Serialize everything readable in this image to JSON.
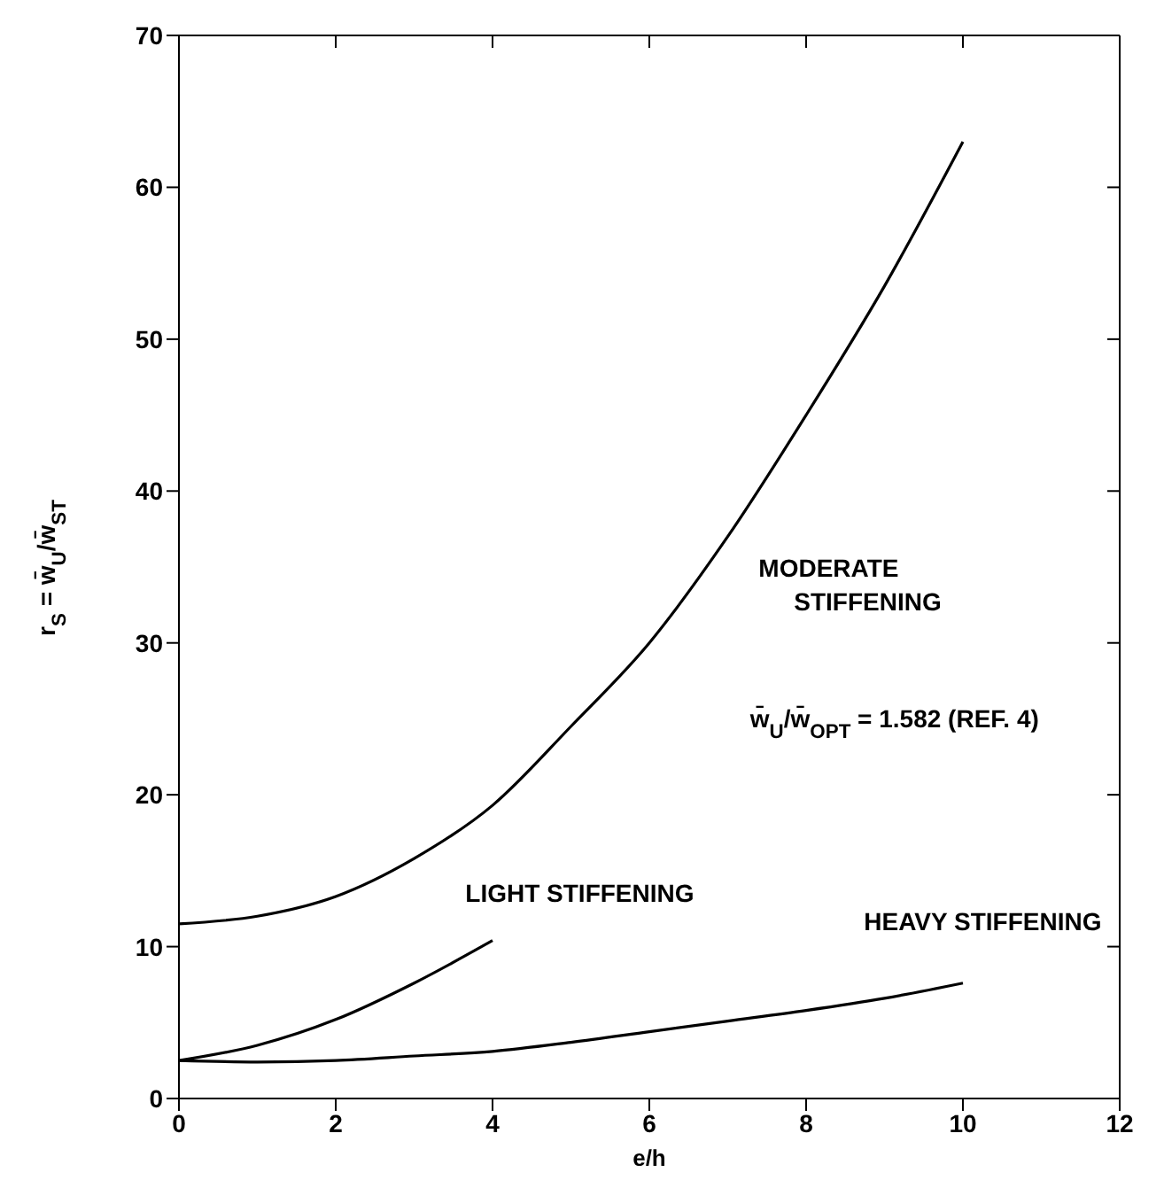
{
  "chart_data": {
    "type": "line",
    "xlabel": "e/h",
    "ylabel": "r$_{S}$ = w̄$_{U}$/w̄$_{ST}$",
    "x": [
      0,
      1,
      2,
      3,
      4,
      5,
      6,
      7,
      8,
      9,
      10
    ],
    "series": [
      {
        "name": "MODERATE STIFFENING",
        "color": "#000000",
        "values": [
          11.5,
          12,
          13.3,
          15.8,
          19.3,
          24.5,
          30,
          37,
          45,
          53.5,
          63
        ]
      },
      {
        "name": "LIGHT STIFFENING",
        "color": "#000000",
        "x": [
          0,
          1,
          2,
          3,
          4
        ],
        "values": [
          2.5,
          3.5,
          5.2,
          7.6,
          10.4
        ]
      },
      {
        "name": "HEAVY STIFFENING",
        "color": "#000000",
        "values": [
          2.5,
          2.4,
          2.5,
          2.8,
          3.1,
          3.7,
          4.4,
          5.1,
          5.8,
          6.6,
          7.6
        ]
      }
    ],
    "annotations": [
      "w̄$_{U}$/w̄$_{OPT}$ = 1.582 (REF. 4)"
    ],
    "xlim": [
      0,
      12
    ],
    "xticks": [
      0,
      2,
      4,
      6,
      8,
      10,
      12
    ],
    "ylim": [
      0,
      70
    ],
    "yticks": [
      0,
      10,
      20,
      30,
      40,
      50,
      60,
      70
    ],
    "grid": false,
    "legend": false,
    "marker": "none",
    "line_style": "solid"
  }
}
